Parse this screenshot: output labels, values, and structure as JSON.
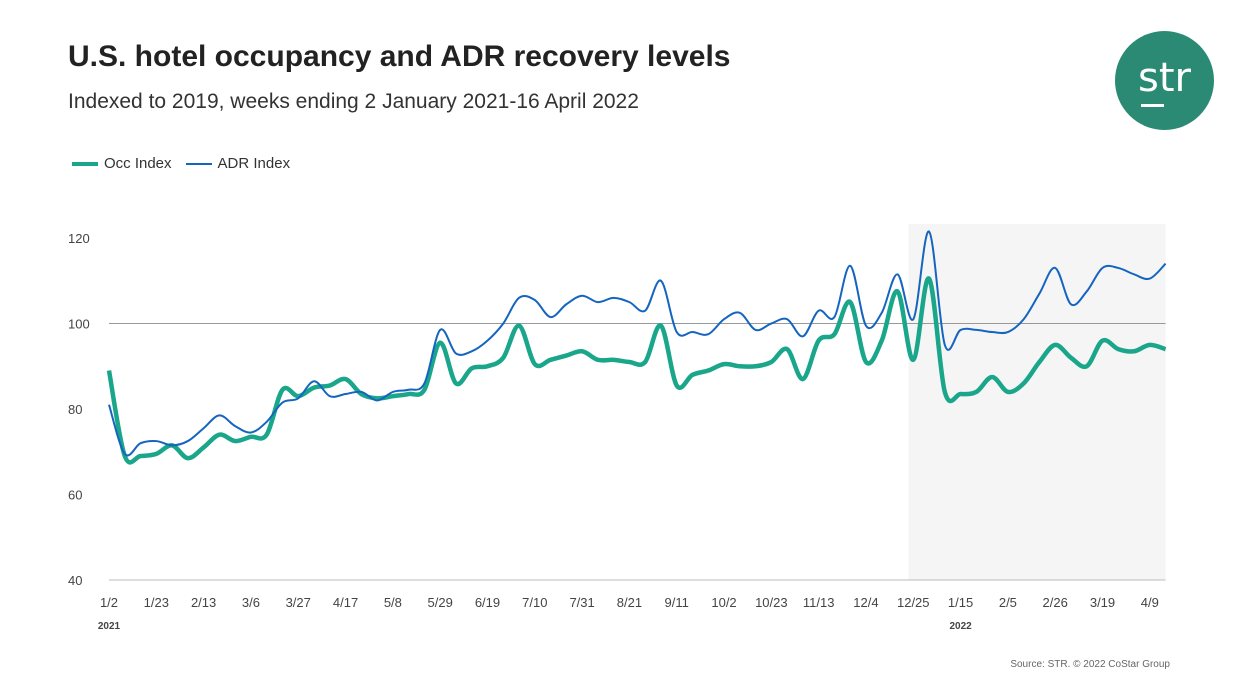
{
  "header": {
    "title": "U.S. hotel occupancy and ADR recovery levels",
    "subtitle": "Indexed to 2019, weeks ending 2 January 2021-16 April 2022"
  },
  "logo": {
    "text": "str",
    "color": "#2b8a73"
  },
  "source": "Source: STR. © 2022 CoStar Group",
  "chart_data": {
    "type": "line",
    "title": "U.S. hotel occupancy and ADR recovery levels",
    "subtitle": "Indexed to 2019, weeks ending 2 January 2021-16 April 2022",
    "legend_position": "top-left",
    "ylim": [
      40,
      120
    ],
    "yticks": [
      40,
      60,
      80,
      100,
      120
    ],
    "reference_line": 100,
    "grid": false,
    "xtick_labels": [
      "1/2",
      "1/23",
      "2/13",
      "3/6",
      "3/27",
      "4/17",
      "5/8",
      "5/29",
      "6/19",
      "7/10",
      "7/31",
      "8/21",
      "9/11",
      "10/2",
      "10/23",
      "11/13",
      "12/4",
      "12/25",
      "1/15",
      "2/5",
      "2/26",
      "3/19",
      "4/9"
    ],
    "year_labels": [
      {
        "label": "2021",
        "at": "1/2"
      },
      {
        "label": "2022",
        "at": "1/15"
      }
    ],
    "shaded_region": "2022",
    "series": [
      {
        "name": "Occ Index",
        "color": "#1aa68a",
        "values": [
          89,
          69,
          69,
          69.5,
          71.5,
          68.5,
          71,
          74,
          72.5,
          73.5,
          74,
          84.5,
          83,
          85,
          85.5,
          87,
          83.5,
          82.5,
          83,
          83.5,
          84.5,
          95.5,
          86,
          89.5,
          90,
          92,
          99.5,
          90.5,
          91.5,
          92.5,
          93.5,
          91.5,
          91.5,
          91,
          91,
          99.5,
          85.5,
          88,
          89,
          90.5,
          90,
          90,
          91,
          94,
          87,
          96,
          97.5,
          105,
          91,
          96,
          107.5,
          91.5,
          110.5,
          84,
          83.5,
          84,
          87.5,
          84,
          86,
          91,
          95,
          92,
          90,
          96,
          94,
          93.5,
          95,
          94
        ]
      },
      {
        "name": "ADR Index",
        "color": "#1565c0",
        "values": [
          81,
          69.5,
          72,
          72.5,
          71.5,
          72.5,
          75.5,
          78.5,
          76,
          74.5,
          77,
          81.5,
          82.5,
          86.5,
          83,
          83.5,
          84,
          82,
          84,
          84.5,
          86,
          98.5,
          93,
          93.5,
          96,
          100,
          106,
          105.5,
          101.5,
          104.5,
          106.5,
          105,
          106,
          105,
          103,
          110,
          98,
          98,
          97.5,
          101,
          102.5,
          98.5,
          100,
          101,
          97,
          103,
          101.5,
          113.5,
          99.5,
          102.5,
          111.5,
          101,
          121.5,
          95,
          98.5,
          98.5,
          98,
          98,
          101,
          107,
          113,
          104.5,
          107.5,
          113,
          113,
          111.5,
          110.5,
          114
        ]
      }
    ]
  }
}
